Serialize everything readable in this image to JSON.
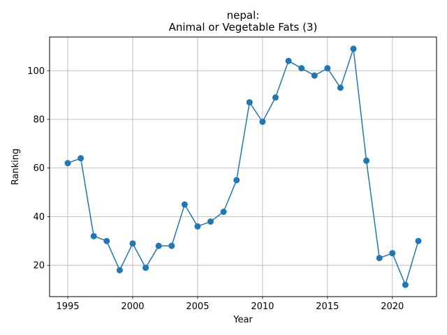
{
  "chart_data": {
    "type": "line",
    "title_line1": "nepal:",
    "title_line2": "Animal or Vegetable Fats (3)",
    "xlabel": "Year",
    "ylabel": "Ranking",
    "xlim": [
      1993.6,
      2023.4
    ],
    "ylim": [
      7.15,
      113.85
    ],
    "xticks": [
      1995,
      2000,
      2005,
      2010,
      2015,
      2020
    ],
    "yticks": [
      20,
      40,
      60,
      80,
      100
    ],
    "grid": true,
    "legend": "none",
    "colors": {
      "line": "#1f77b4",
      "marker": "#1f77b4",
      "grid": "#b0b0b0"
    },
    "series": [
      {
        "x": [
          1995,
          1996,
          1997,
          1998,
          1999,
          2000,
          2001,
          2002,
          2003,
          2004,
          2005,
          2006,
          2007,
          2008,
          2009,
          2010,
          2011,
          2012,
          2013,
          2014,
          2015,
          2016,
          2017,
          2018,
          2019,
          2020,
          2021,
          2022
        ],
        "y": [
          62,
          64,
          32,
          30,
          18,
          29,
          19,
          28,
          28,
          45,
          36,
          38,
          42,
          55,
          87,
          79,
          89,
          104,
          101,
          98,
          101,
          93,
          109,
          63,
          23,
          25,
          12,
          30
        ]
      }
    ]
  }
}
